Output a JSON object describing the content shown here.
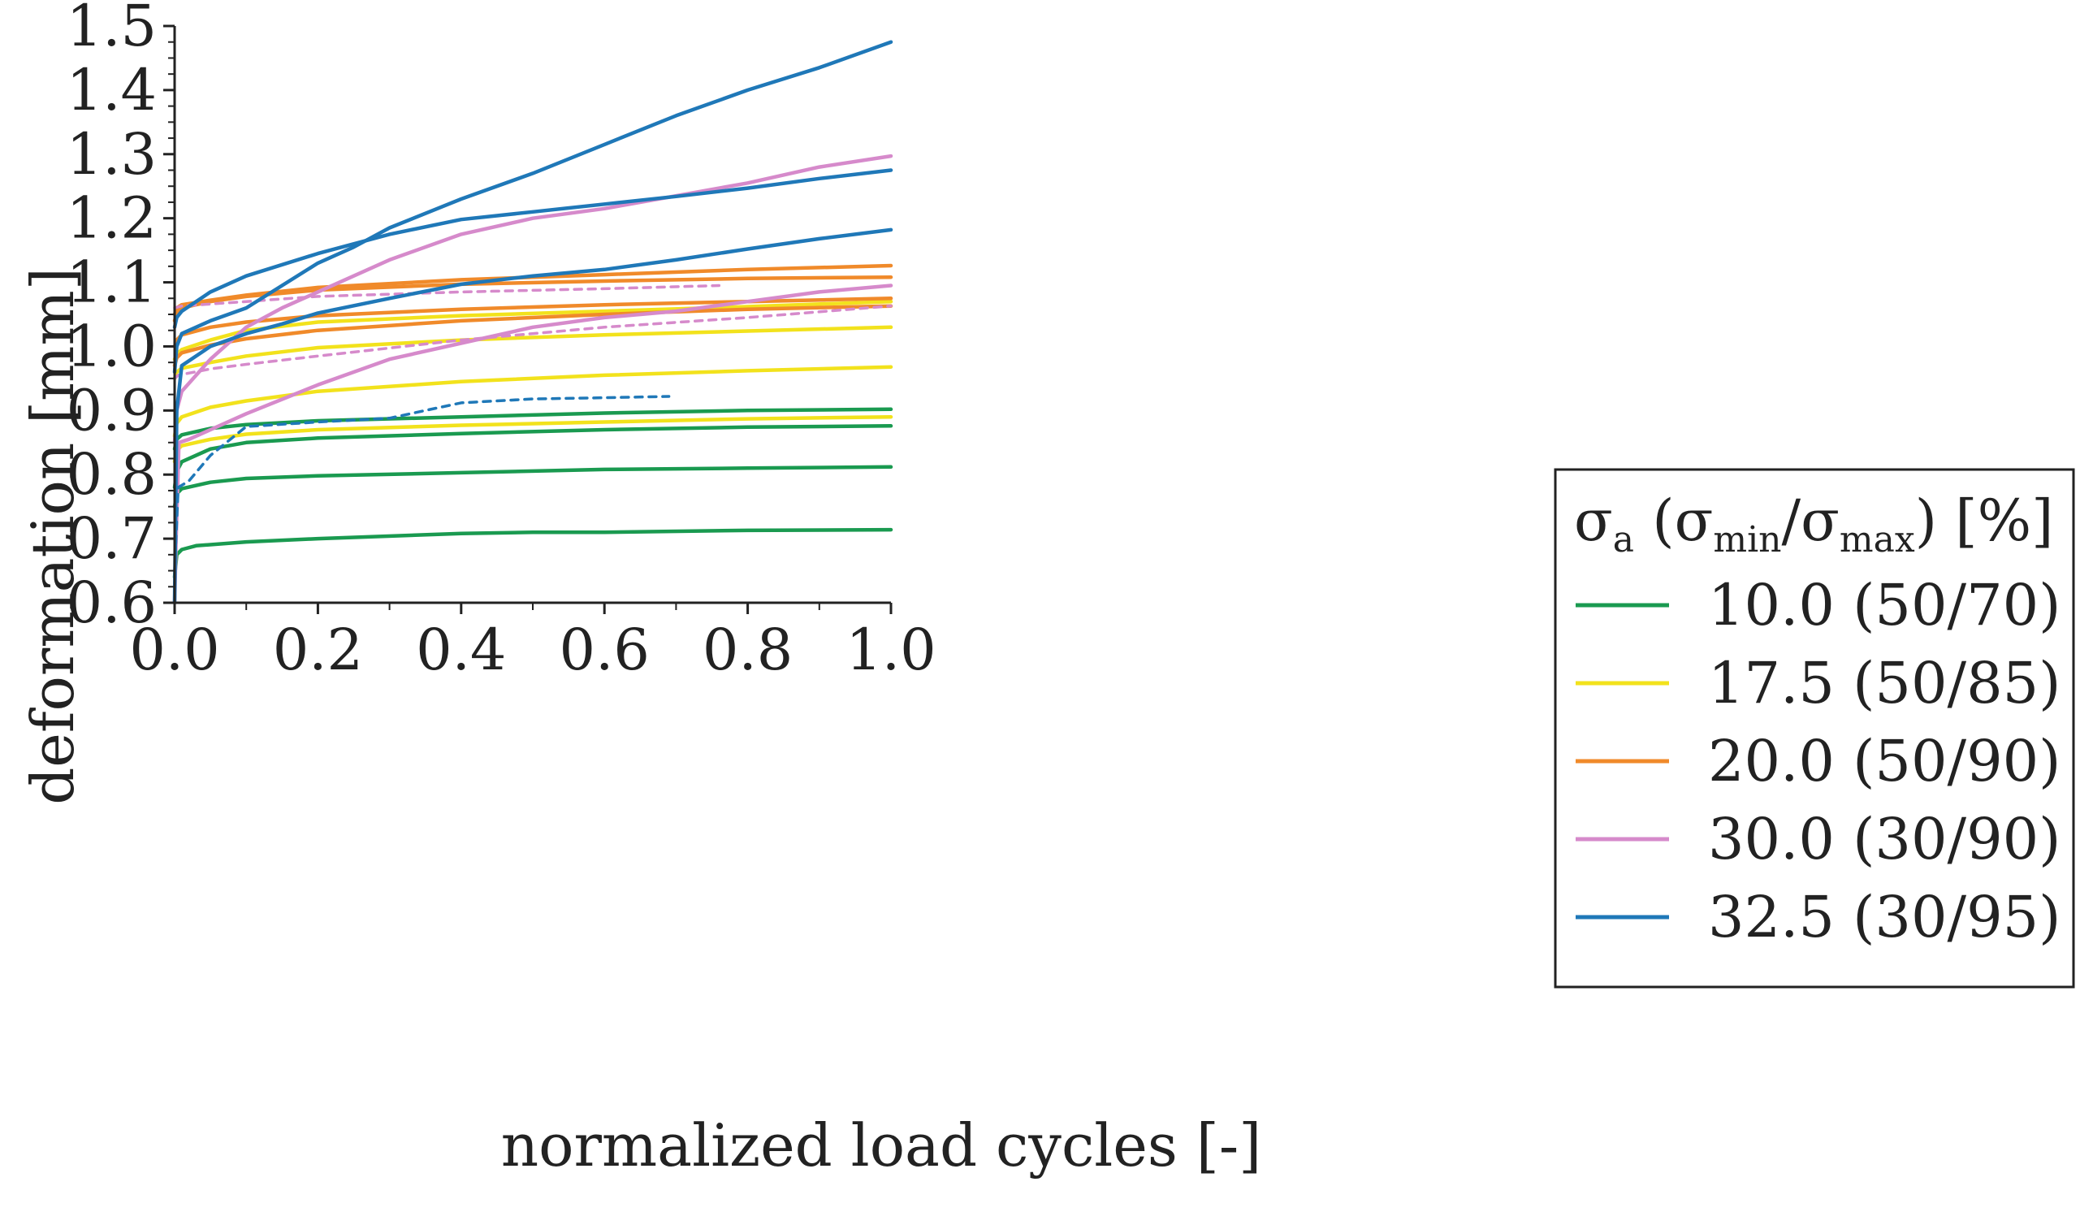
{
  "chart_data": {
    "type": "line",
    "title": "",
    "xlabel": "normalized load cycles [-]",
    "ylabel": "deformation [mm]",
    "xlim": [
      0,
      1
    ],
    "ylim": [
      0.6,
      1.5
    ],
    "xticks": [
      "0.0",
      "0.2",
      "0.4",
      "0.6",
      "0.8",
      "1.0"
    ],
    "yticks": [
      "0.6",
      "0.7",
      "0.8",
      "0.9",
      "1.0",
      "1.1",
      "1.2",
      "1.3",
      "1.4",
      "1.5"
    ],
    "legend": {
      "position": "right",
      "title_parts": {
        "sym1": "σ",
        "sub1": "a",
        "open": " (",
        "sym2": "σ",
        "sub2": "min",
        "slash": "/",
        "sym3": "σ",
        "sub3": "max",
        "close": ") [%]"
      },
      "entries": [
        {
          "label": "10.0 (50/70)",
          "color": "#1a9a50"
        },
        {
          "label": "17.5 (50/85)",
          "color": "#f2e21c"
        },
        {
          "label": "20.0 (50/90)",
          "color": "#f08a2a"
        },
        {
          "label": "30.0 (30/90)",
          "color": "#d68acb"
        },
        {
          "label": "32.5 (30/95)",
          "color": "#1f78b8"
        }
      ]
    },
    "series": [
      {
        "name": "10.0 (50/70) a",
        "color": "#1a9a50",
        "dashed": false,
        "points": [
          [
            0,
            0.64
          ],
          [
            0.003,
            0.675
          ],
          [
            0.01,
            0.683
          ],
          [
            0.03,
            0.689
          ],
          [
            0.1,
            0.695
          ],
          [
            0.2,
            0.7
          ],
          [
            0.4,
            0.708
          ],
          [
            0.5,
            0.71
          ],
          [
            0.6,
            0.71
          ],
          [
            0.8,
            0.713
          ],
          [
            1.0,
            0.714
          ]
        ]
      },
      {
        "name": "10.0 (50/70) b",
        "color": "#1a9a50",
        "dashed": false,
        "points": [
          [
            0,
            0.75
          ],
          [
            0.003,
            0.77
          ],
          [
            0.01,
            0.778
          ],
          [
            0.05,
            0.788
          ],
          [
            0.1,
            0.794
          ],
          [
            0.2,
            0.798
          ],
          [
            0.4,
            0.803
          ],
          [
            0.6,
            0.808
          ],
          [
            0.8,
            0.81
          ],
          [
            1.0,
            0.812
          ]
        ]
      },
      {
        "name": "10.0 (50/70) c",
        "color": "#1a9a50",
        "dashed": false,
        "points": [
          [
            0,
            0.78
          ],
          [
            0.003,
            0.805
          ],
          [
            0.01,
            0.82
          ],
          [
            0.05,
            0.84
          ],
          [
            0.1,
            0.85
          ],
          [
            0.2,
            0.857
          ],
          [
            0.4,
            0.864
          ],
          [
            0.6,
            0.87
          ],
          [
            0.8,
            0.874
          ],
          [
            1.0,
            0.876
          ]
        ]
      },
      {
        "name": "10.0 (50/70) d",
        "color": "#1a9a50",
        "dashed": false,
        "points": [
          [
            0,
            0.84
          ],
          [
            0.003,
            0.855
          ],
          [
            0.01,
            0.862
          ],
          [
            0.05,
            0.872
          ],
          [
            0.1,
            0.878
          ],
          [
            0.2,
            0.884
          ],
          [
            0.4,
            0.89
          ],
          [
            0.6,
            0.896
          ],
          [
            0.8,
            0.9
          ],
          [
            1.0,
            0.902
          ]
        ]
      },
      {
        "name": "17.5 (50/85) a",
        "color": "#f2e21c",
        "dashed": false,
        "points": [
          [
            0,
            0.82
          ],
          [
            0.003,
            0.838
          ],
          [
            0.01,
            0.845
          ],
          [
            0.05,
            0.855
          ],
          [
            0.1,
            0.863
          ],
          [
            0.2,
            0.87
          ],
          [
            0.4,
            0.877
          ],
          [
            0.6,
            0.882
          ],
          [
            0.8,
            0.887
          ],
          [
            1.0,
            0.89
          ]
        ]
      },
      {
        "name": "17.5 (50/85) b",
        "color": "#f2e21c",
        "dashed": false,
        "points": [
          [
            0,
            0.86
          ],
          [
            0.003,
            0.88
          ],
          [
            0.01,
            0.89
          ],
          [
            0.05,
            0.905
          ],
          [
            0.1,
            0.915
          ],
          [
            0.2,
            0.93
          ],
          [
            0.4,
            0.945
          ],
          [
            0.6,
            0.955
          ],
          [
            0.8,
            0.962
          ],
          [
            1.0,
            0.968
          ]
        ]
      },
      {
        "name": "17.5 (50/85) c",
        "color": "#f2e21c",
        "dashed": false,
        "points": [
          [
            0,
            0.95
          ],
          [
            0.003,
            0.96
          ],
          [
            0.01,
            0.966
          ],
          [
            0.05,
            0.975
          ],
          [
            0.1,
            0.985
          ],
          [
            0.2,
            0.998
          ],
          [
            0.4,
            1.01
          ],
          [
            0.6,
            1.018
          ],
          [
            0.8,
            1.024
          ],
          [
            1.0,
            1.03
          ]
        ]
      },
      {
        "name": "17.5 (50/85) d",
        "color": "#f2e21c",
        "dashed": false,
        "points": [
          [
            0,
            0.98
          ],
          [
            0.003,
            0.988
          ],
          [
            0.01,
            0.995
          ],
          [
            0.05,
            1.01
          ],
          [
            0.1,
            1.025
          ],
          [
            0.2,
            1.038
          ],
          [
            0.4,
            1.048
          ],
          [
            0.6,
            1.055
          ],
          [
            0.8,
            1.062
          ],
          [
            1.0,
            1.07
          ]
        ]
      },
      {
        "name": "20.0 (50/90) a",
        "color": "#f08a2a",
        "dashed": false,
        "points": [
          [
            0,
            0.97
          ],
          [
            0.003,
            0.982
          ],
          [
            0.01,
            0.99
          ],
          [
            0.05,
            1.002
          ],
          [
            0.1,
            1.012
          ],
          [
            0.2,
            1.025
          ],
          [
            0.4,
            1.04
          ],
          [
            0.6,
            1.05
          ],
          [
            0.8,
            1.058
          ],
          [
            1.0,
            1.063
          ]
        ]
      },
      {
        "name": "20.0 (50/90) b",
        "color": "#f08a2a",
        "dashed": false,
        "points": [
          [
            0,
            1.0
          ],
          [
            0.003,
            1.01
          ],
          [
            0.01,
            1.018
          ],
          [
            0.05,
            1.03
          ],
          [
            0.1,
            1.038
          ],
          [
            0.2,
            1.048
          ],
          [
            0.4,
            1.058
          ],
          [
            0.6,
            1.065
          ],
          [
            0.8,
            1.07
          ],
          [
            1.0,
            1.075
          ]
        ]
      },
      {
        "name": "20.0 (50/90) c",
        "color": "#f08a2a",
        "dashed": false,
        "points": [
          [
            0,
            1.04
          ],
          [
            0.003,
            1.052
          ],
          [
            0.01,
            1.06
          ],
          [
            0.05,
            1.07
          ],
          [
            0.1,
            1.078
          ],
          [
            0.2,
            1.088
          ],
          [
            0.4,
            1.097
          ],
          [
            0.6,
            1.102
          ],
          [
            0.8,
            1.106
          ],
          [
            1.0,
            1.108
          ]
        ]
      },
      {
        "name": "20.0 (50/90) d",
        "color": "#f08a2a",
        "dashed": false,
        "points": [
          [
            0,
            1.05
          ],
          [
            0.003,
            1.06
          ],
          [
            0.01,
            1.065
          ],
          [
            0.05,
            1.072
          ],
          [
            0.1,
            1.08
          ],
          [
            0.2,
            1.092
          ],
          [
            0.4,
            1.104
          ],
          [
            0.6,
            1.112
          ],
          [
            0.8,
            1.12
          ],
          [
            1.0,
            1.126
          ]
        ]
      },
      {
        "name": "30.0 (30/90) a",
        "color": "#d68acb",
        "dashed": false,
        "points": [
          [
            0,
            0.6
          ],
          [
            0.002,
            0.7
          ],
          [
            0.006,
            0.85
          ],
          [
            0.02,
            0.855
          ],
          [
            0.05,
            0.87
          ],
          [
            0.1,
            0.895
          ],
          [
            0.2,
            0.94
          ],
          [
            0.3,
            0.98
          ],
          [
            0.4,
            1.005
          ],
          [
            0.5,
            1.03
          ],
          [
            0.6,
            1.045
          ],
          [
            0.7,
            1.055
          ],
          [
            0.8,
            1.07
          ],
          [
            0.9,
            1.085
          ],
          [
            1.0,
            1.095
          ]
        ]
      },
      {
        "name": "30.0 (30/90) b",
        "color": "#d68acb",
        "dashed": false,
        "points": [
          [
            0,
            0.85
          ],
          [
            0.003,
            0.9
          ],
          [
            0.01,
            0.93
          ],
          [
            0.05,
            0.98
          ],
          [
            0.1,
            1.03
          ],
          [
            0.15,
            1.06
          ],
          [
            0.2,
            1.085
          ],
          [
            0.3,
            1.135
          ],
          [
            0.4,
            1.175
          ],
          [
            0.5,
            1.2
          ],
          [
            0.6,
            1.215
          ],
          [
            0.7,
            1.235
          ],
          [
            0.8,
            1.255
          ],
          [
            0.9,
            1.28
          ],
          [
            1.0,
            1.297
          ]
        ]
      },
      {
        "name": "30.0 (30/90) c",
        "color": "#d68acb",
        "dashed": true,
        "points": [
          [
            0,
            1.06
          ],
          [
            0.01,
            1.063
          ],
          [
            0.1,
            1.07
          ],
          [
            0.2,
            1.078
          ],
          [
            0.4,
            1.085
          ],
          [
            0.6,
            1.09
          ],
          [
            0.76,
            1.095
          ]
        ]
      },
      {
        "name": "30.0 (30/90) d",
        "color": "#d68acb",
        "dashed": true,
        "points": [
          [
            0,
            0.95
          ],
          [
            0.005,
            0.955
          ],
          [
            0.05,
            0.965
          ],
          [
            0.1,
            0.972
          ],
          [
            0.2,
            0.985
          ],
          [
            0.4,
            1.01
          ],
          [
            0.6,
            1.03
          ],
          [
            0.8,
            1.045
          ],
          [
            1.0,
            1.063
          ]
        ]
      },
      {
        "name": "32.5 (30/95) a",
        "color": "#1f78b8",
        "dashed": false,
        "points": [
          [
            0,
            0.96
          ],
          [
            0.003,
            1.0
          ],
          [
            0.01,
            1.02
          ],
          [
            0.05,
            1.04
          ],
          [
            0.1,
            1.06
          ],
          [
            0.15,
            1.095
          ],
          [
            0.2,
            1.13
          ],
          [
            0.25,
            1.155
          ],
          [
            0.3,
            1.185
          ],
          [
            0.4,
            1.23
          ],
          [
            0.5,
            1.27
          ],
          [
            0.6,
            1.315
          ],
          [
            0.7,
            1.36
          ],
          [
            0.8,
            1.4
          ],
          [
            0.9,
            1.435
          ],
          [
            1.0,
            1.475
          ]
        ]
      },
      {
        "name": "32.5 (30/95) b",
        "color": "#1f78b8",
        "dashed": false,
        "points": [
          [
            0,
            1.03
          ],
          [
            0.003,
            1.045
          ],
          [
            0.01,
            1.055
          ],
          [
            0.05,
            1.085
          ],
          [
            0.1,
            1.11
          ],
          [
            0.2,
            1.145
          ],
          [
            0.3,
            1.175
          ],
          [
            0.4,
            1.198
          ],
          [
            0.5,
            1.21
          ],
          [
            0.6,
            1.222
          ],
          [
            0.7,
            1.234
          ],
          [
            0.8,
            1.247
          ],
          [
            0.9,
            1.262
          ],
          [
            1.0,
            1.275
          ]
        ]
      },
      {
        "name": "32.5 (30/95) c",
        "color": "#1f78b8",
        "dashed": false,
        "points": [
          [
            0,
            0.6
          ],
          [
            0.003,
            0.9
          ],
          [
            0.01,
            0.97
          ],
          [
            0.05,
            1.0
          ],
          [
            0.1,
            1.02
          ],
          [
            0.15,
            1.035
          ],
          [
            0.2,
            1.052
          ],
          [
            0.3,
            1.075
          ],
          [
            0.4,
            1.097
          ],
          [
            0.5,
            1.11
          ],
          [
            0.6,
            1.12
          ],
          [
            0.7,
            1.135
          ],
          [
            0.8,
            1.152
          ],
          [
            0.9,
            1.168
          ],
          [
            1.0,
            1.182
          ]
        ]
      },
      {
        "name": "32.5 (30/95) d",
        "color": "#1f78b8",
        "dashed": true,
        "points": [
          [
            0,
            0.65
          ],
          [
            0.005,
            0.78
          ],
          [
            0.02,
            0.79
          ],
          [
            0.05,
            0.83
          ],
          [
            0.1,
            0.875
          ],
          [
            0.2,
            0.882
          ],
          [
            0.3,
            0.888
          ],
          [
            0.35,
            0.9
          ],
          [
            0.4,
            0.912
          ],
          [
            0.5,
            0.918
          ],
          [
            0.6,
            0.92
          ],
          [
            0.69,
            0.922
          ]
        ]
      }
    ]
  }
}
